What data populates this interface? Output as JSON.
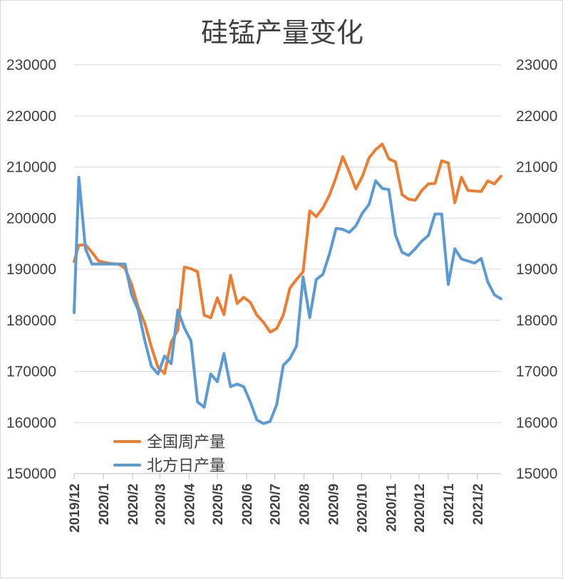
{
  "chart_data": {
    "type": "line",
    "title": "硅锰产量变化",
    "y_left": {
      "ylim": [
        150000,
        230000
      ],
      "ticks": [
        "150000",
        "160000",
        "170000",
        "180000",
        "190000",
        "200000",
        "210000",
        "220000",
        "230000"
      ]
    },
    "y_right": {
      "ylim": [
        15000,
        23000
      ],
      "ticks": [
        "15000",
        "16000",
        "17000",
        "18000",
        "19000",
        "20000",
        "21000",
        "22000",
        "23000"
      ]
    },
    "x_range": [
      "2019-12-01",
      "2021-02-26"
    ],
    "x_ticks": [
      {
        "label": "2019/12",
        "date": "2019-12-01"
      },
      {
        "label": "2020/1",
        "date": "2020-01-01"
      },
      {
        "label": "2020/2",
        "date": "2020-02-01"
      },
      {
        "label": "2020/3",
        "date": "2020-03-01"
      },
      {
        "label": "2020/4",
        "date": "2020-04-01"
      },
      {
        "label": "2020/5",
        "date": "2020-05-01"
      },
      {
        "label": "2020/6",
        "date": "2020-06-01"
      },
      {
        "label": "2020/7",
        "date": "2020-07-01"
      },
      {
        "label": "2020/8",
        "date": "2020-08-01"
      },
      {
        "label": "2020/9",
        "date": "2020-09-01"
      },
      {
        "label": "2020/10",
        "date": "2020-10-01"
      },
      {
        "label": "2020/11",
        "date": "2020-11-01"
      },
      {
        "label": "2020/12",
        "date": "2020-12-01"
      },
      {
        "label": "2021/1",
        "date": "2021-01-01"
      },
      {
        "label": "2021/2",
        "date": "2021-02-01"
      }
    ],
    "grid": true,
    "legend_position": "bottom-left",
    "series": [
      {
        "name": "全国周产量",
        "axis": "left",
        "color": "#ED7D31",
        "points": [
          [
            "2019-12-01",
            191500
          ],
          [
            "2019-12-06",
            194700
          ],
          [
            "2019-12-13",
            194800
          ],
          [
            "2019-12-20",
            193300
          ],
          [
            "2019-12-27",
            191600
          ],
          [
            "2020-01-03",
            191300
          ],
          [
            "2020-01-10",
            191100
          ],
          [
            "2020-01-17",
            191000
          ],
          [
            "2020-01-24",
            190200
          ],
          [
            "2020-01-31",
            187000
          ],
          [
            "2020-02-07",
            182600
          ],
          [
            "2020-02-14",
            179400
          ],
          [
            "2020-02-21",
            174800
          ],
          [
            "2020-02-28",
            170800
          ],
          [
            "2020-03-06",
            169600
          ],
          [
            "2020-03-13",
            175700
          ],
          [
            "2020-03-20",
            178100
          ],
          [
            "2020-03-27",
            190400
          ],
          [
            "2020-04-03",
            190100
          ],
          [
            "2020-04-10",
            189500
          ],
          [
            "2020-04-17",
            181000
          ],
          [
            "2020-04-24",
            180500
          ],
          [
            "2020-05-01",
            184400
          ],
          [
            "2020-05-08",
            181100
          ],
          [
            "2020-05-15",
            188800
          ],
          [
            "2020-05-22",
            183300
          ],
          [
            "2020-05-29",
            184500
          ],
          [
            "2020-06-05",
            183500
          ],
          [
            "2020-06-12",
            181000
          ],
          [
            "2020-06-19",
            179600
          ],
          [
            "2020-06-26",
            177700
          ],
          [
            "2020-07-03",
            178400
          ],
          [
            "2020-07-10",
            181000
          ],
          [
            "2020-07-17",
            186300
          ],
          [
            "2020-07-24",
            188000
          ],
          [
            "2020-07-31",
            189500
          ],
          [
            "2020-08-07",
            201400
          ],
          [
            "2020-08-14",
            200300
          ],
          [
            "2020-08-21",
            202000
          ],
          [
            "2020-08-28",
            204500
          ],
          [
            "2020-09-04",
            208000
          ],
          [
            "2020-09-11",
            212000
          ],
          [
            "2020-09-18",
            209100
          ],
          [
            "2020-09-25",
            205700
          ],
          [
            "2020-10-02",
            208200
          ],
          [
            "2020-10-09",
            211800
          ],
          [
            "2020-10-16",
            213400
          ],
          [
            "2020-10-23",
            214500
          ],
          [
            "2020-10-30",
            211600
          ],
          [
            "2020-11-06",
            211000
          ],
          [
            "2020-11-13",
            204600
          ],
          [
            "2020-11-20",
            203700
          ],
          [
            "2020-11-27",
            203500
          ],
          [
            "2020-12-04",
            205400
          ],
          [
            "2020-12-11",
            206700
          ],
          [
            "2020-12-18",
            206800
          ],
          [
            "2020-12-25",
            211200
          ],
          [
            "2021-01-01",
            210800
          ],
          [
            "2021-01-08",
            203000
          ],
          [
            "2021-01-15",
            208000
          ],
          [
            "2021-01-22",
            205400
          ],
          [
            "2021-01-29",
            205300
          ],
          [
            "2021-02-05",
            205200
          ],
          [
            "2021-02-12",
            207300
          ],
          [
            "2021-02-19",
            206700
          ],
          [
            "2021-02-26",
            208200
          ]
        ]
      },
      {
        "name": "北方日产量",
        "axis": "right",
        "color": "#5B9BD5",
        "points": [
          [
            "2019-12-01",
            18150
          ],
          [
            "2019-12-06",
            20800
          ],
          [
            "2019-12-13",
            19400
          ],
          [
            "2019-12-20",
            19100
          ],
          [
            "2019-12-27",
            19100
          ],
          [
            "2020-01-03",
            19100
          ],
          [
            "2020-01-10",
            19100
          ],
          [
            "2020-01-17",
            19100
          ],
          [
            "2020-01-24",
            19100
          ],
          [
            "2020-01-31",
            18500
          ],
          [
            "2020-02-07",
            18200
          ],
          [
            "2020-02-14",
            17600
          ],
          [
            "2020-02-21",
            17100
          ],
          [
            "2020-02-28",
            16950
          ],
          [
            "2020-03-06",
            17300
          ],
          [
            "2020-03-13",
            17150
          ],
          [
            "2020-03-20",
            18200
          ],
          [
            "2020-03-27",
            17850
          ],
          [
            "2020-04-03",
            17600
          ],
          [
            "2020-04-10",
            16400
          ],
          [
            "2020-04-17",
            16300
          ],
          [
            "2020-04-24",
            16950
          ],
          [
            "2020-05-01",
            16800
          ],
          [
            "2020-05-08",
            17350
          ],
          [
            "2020-05-15",
            16700
          ],
          [
            "2020-05-22",
            16750
          ],
          [
            "2020-05-29",
            16700
          ],
          [
            "2020-06-05",
            16400
          ],
          [
            "2020-06-12",
            16050
          ],
          [
            "2020-06-19",
            15980
          ],
          [
            "2020-06-26",
            16020
          ],
          [
            "2020-07-03",
            16350
          ],
          [
            "2020-07-10",
            17120
          ],
          [
            "2020-07-17",
            17250
          ],
          [
            "2020-07-24",
            17500
          ],
          [
            "2020-07-31",
            18850
          ],
          [
            "2020-08-07",
            18050
          ],
          [
            "2020-08-14",
            18800
          ],
          [
            "2020-08-21",
            18900
          ],
          [
            "2020-08-28",
            19300
          ],
          [
            "2020-09-04",
            19800
          ],
          [
            "2020-09-11",
            19780
          ],
          [
            "2020-09-18",
            19720
          ],
          [
            "2020-09-25",
            19850
          ],
          [
            "2020-10-02",
            20100
          ],
          [
            "2020-10-09",
            20270
          ],
          [
            "2020-10-16",
            20730
          ],
          [
            "2020-10-23",
            20580
          ],
          [
            "2020-10-30",
            20560
          ],
          [
            "2020-11-06",
            19670
          ],
          [
            "2020-11-13",
            19330
          ],
          [
            "2020-11-20",
            19270
          ],
          [
            "2020-11-27",
            19400
          ],
          [
            "2020-12-04",
            19550
          ],
          [
            "2020-12-11",
            19660
          ],
          [
            "2020-12-18",
            20080
          ],
          [
            "2020-12-25",
            20080
          ],
          [
            "2021-01-01",
            18700
          ],
          [
            "2021-01-08",
            19400
          ],
          [
            "2021-01-15",
            19200
          ],
          [
            "2021-01-22",
            19160
          ],
          [
            "2021-01-29",
            19120
          ],
          [
            "2021-02-05",
            19210
          ],
          [
            "2021-02-12",
            18750
          ],
          [
            "2021-02-19",
            18500
          ],
          [
            "2021-02-26",
            18420
          ]
        ]
      }
    ]
  }
}
